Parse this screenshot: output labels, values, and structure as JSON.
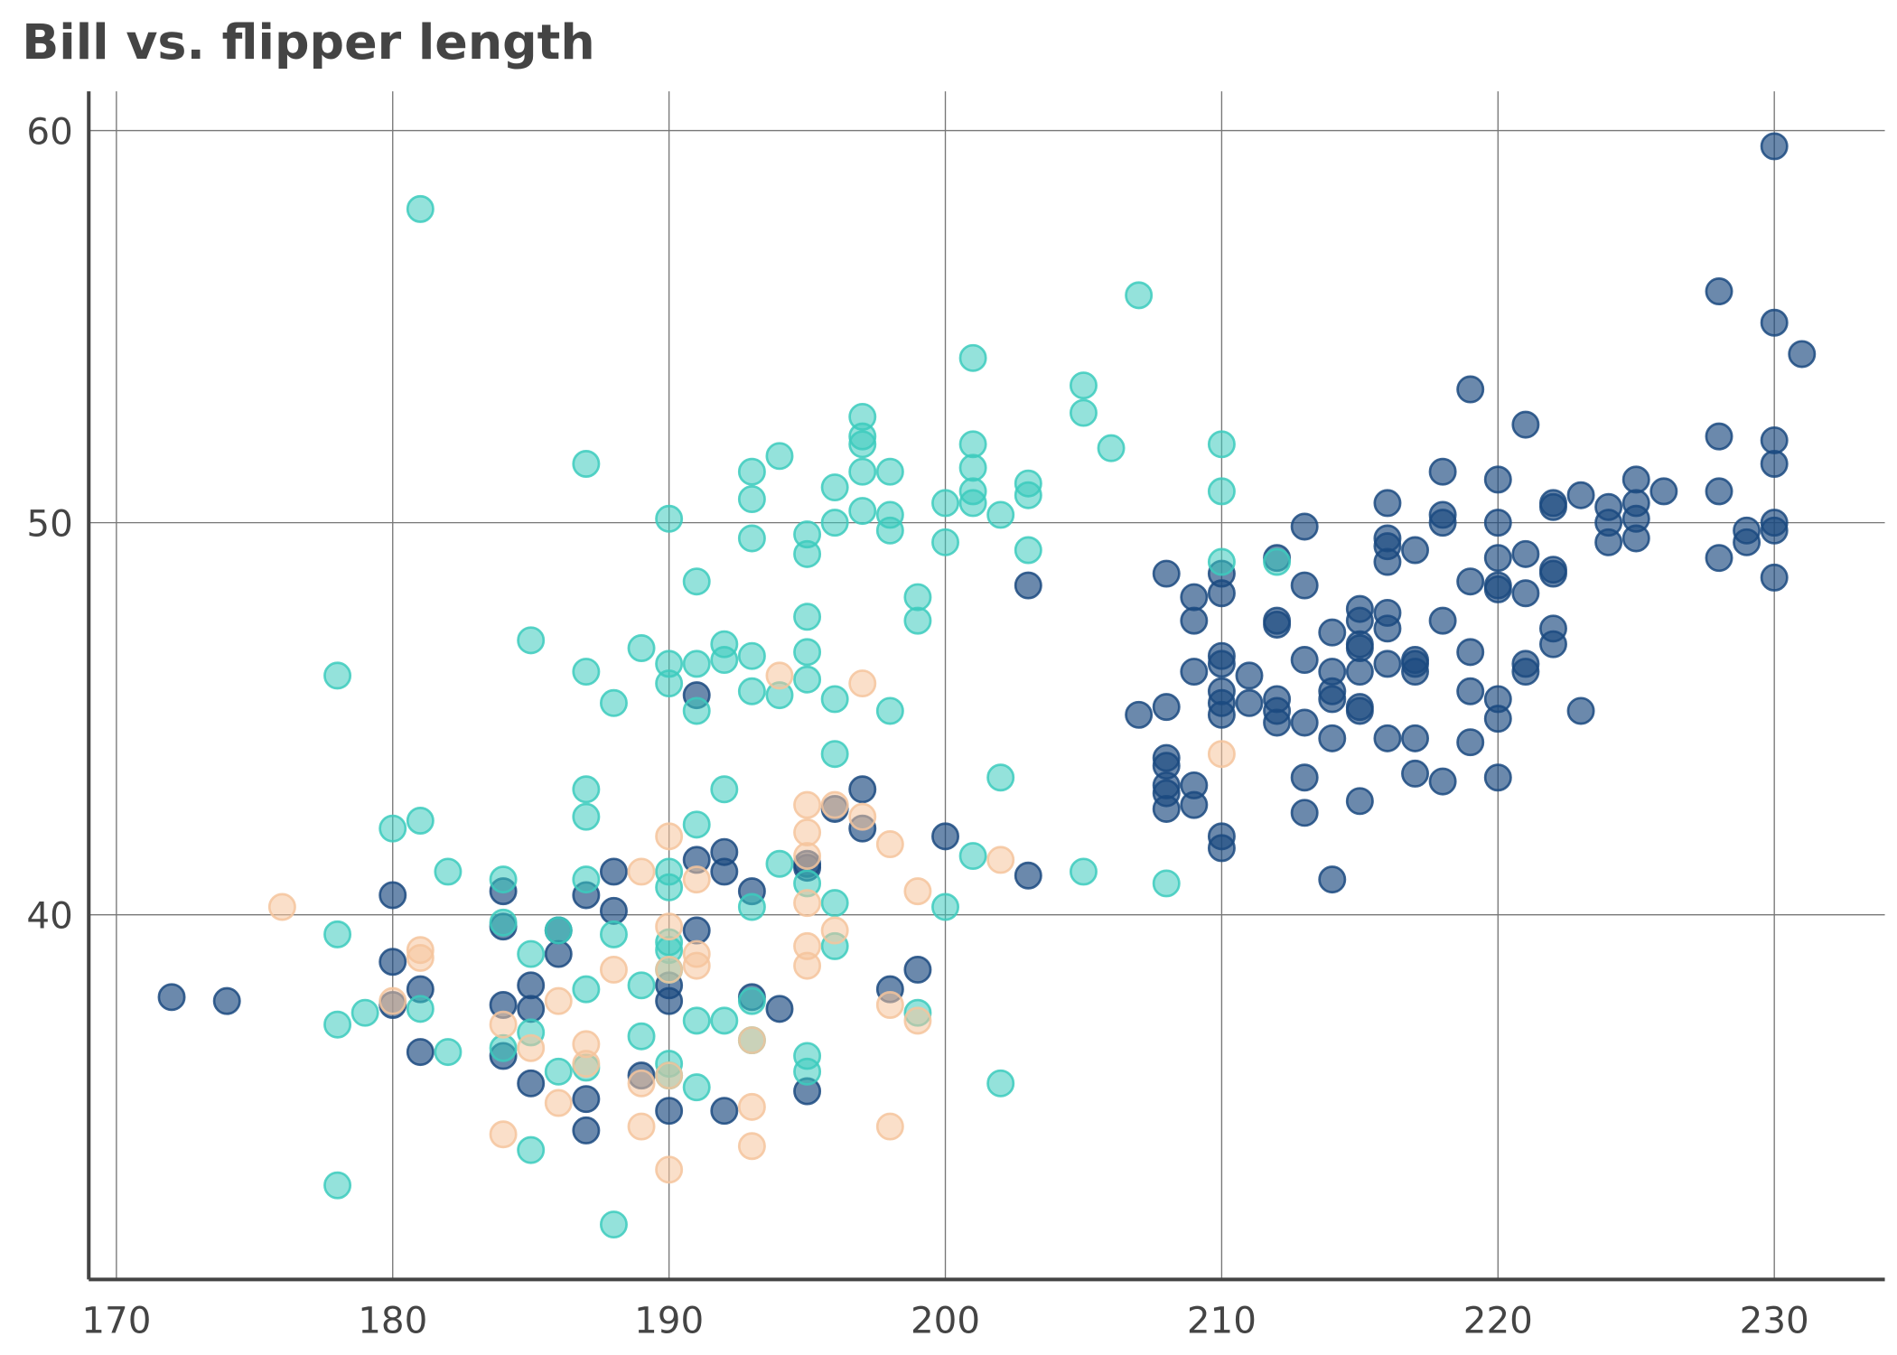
{
  "chart_data": {
    "type": "scatter",
    "title": "Bill vs. flipper length",
    "xlabel": "",
    "ylabel": "",
    "xlim": [
      169,
      234
    ],
    "ylim": [
      30.7,
      61
    ],
    "grid": true,
    "x_ticks": [
      170,
      180,
      190,
      200,
      210,
      220,
      230
    ],
    "y_ticks": [
      40,
      50,
      60
    ],
    "x_tick_labels": [
      "170",
      "180",
      "190",
      "200",
      "210",
      "220",
      "230"
    ],
    "y_tick_labels": [
      "40",
      "50",
      "60"
    ],
    "series": [
      {
        "color": "#1b4a80",
        "points": [
          [
            230,
            59.6
          ],
          [
            228,
            55.9
          ],
          [
            230,
            55.1
          ],
          [
            231,
            54.3
          ],
          [
            219,
            53.4
          ],
          [
            221,
            52.5
          ],
          [
            228,
            52.2
          ],
          [
            230,
            52.1
          ],
          [
            230,
            51.5
          ],
          [
            218,
            51.3
          ],
          [
            220,
            51.1
          ],
          [
            225,
            51.1
          ],
          [
            228,
            50.8
          ],
          [
            226,
            50.8
          ],
          [
            223,
            50.7
          ],
          [
            222,
            50.5
          ],
          [
            216,
            50.5
          ],
          [
            224,
            50.4
          ],
          [
            225,
            50.5
          ],
          [
            222,
            50.4
          ],
          [
            218,
            50.2
          ],
          [
            218,
            50.0
          ],
          [
            220,
            50.0
          ],
          [
            213,
            49.9
          ],
          [
            224,
            50.0
          ],
          [
            225,
            50.1
          ],
          [
            230,
            50.0
          ],
          [
            230,
            49.8
          ],
          [
            229,
            49.8
          ],
          [
            229,
            49.5
          ],
          [
            224,
            49.5
          ],
          [
            225,
            49.6
          ],
          [
            216,
            49.6
          ],
          [
            216,
            49.4
          ],
          [
            217,
            49.3
          ],
          [
            221,
            49.2
          ],
          [
            220,
            49.1
          ],
          [
            212,
            49.1
          ],
          [
            216,
            49.0
          ],
          [
            228,
            49.1
          ],
          [
            222,
            48.8
          ],
          [
            222,
            48.7
          ],
          [
            208,
            48.7
          ],
          [
            210,
            48.7
          ],
          [
            230,
            48.6
          ],
          [
            219,
            48.5
          ],
          [
            220,
            48.4
          ],
          [
            220,
            48.3
          ],
          [
            203,
            48.4
          ],
          [
            213,
            48.4
          ],
          [
            210,
            48.2
          ],
          [
            209,
            48.1
          ],
          [
            221,
            48.2
          ],
          [
            215,
            47.8
          ],
          [
            216,
            47.7
          ],
          [
            212,
            47.5
          ],
          [
            215,
            47.5
          ],
          [
            209,
            47.5
          ],
          [
            218,
            47.5
          ],
          [
            212,
            47.4
          ],
          [
            216,
            47.3
          ],
          [
            222,
            47.3
          ],
          [
            214,
            47.2
          ],
          [
            215,
            46.9
          ],
          [
            222,
            46.9
          ],
          [
            215,
            46.8
          ],
          [
            219,
            46.7
          ],
          [
            210,
            46.6
          ],
          [
            213,
            46.5
          ],
          [
            217,
            46.5
          ],
          [
            217,
            46.4
          ],
          [
            216,
            46.4
          ],
          [
            221,
            46.4
          ],
          [
            210,
            46.4
          ],
          [
            214,
            46.2
          ],
          [
            215,
            46.2
          ],
          [
            209,
            46.2
          ],
          [
            211,
            46.1
          ],
          [
            221,
            46.2
          ],
          [
            217,
            46.2
          ],
          [
            210,
            45.7
          ],
          [
            214,
            45.7
          ],
          [
            219,
            45.7
          ],
          [
            212,
            45.5
          ],
          [
            214,
            45.5
          ],
          [
            220,
            45.5
          ],
          [
            210,
            45.4
          ],
          [
            211,
            45.4
          ],
          [
            208,
            45.3
          ],
          [
            215,
            45.3
          ],
          [
            215,
            45.2
          ],
          [
            212,
            45.2
          ],
          [
            210,
            45.1
          ],
          [
            207,
            45.1
          ],
          [
            223,
            45.2
          ],
          [
            220,
            45.0
          ],
          [
            212,
            44.9
          ],
          [
            213,
            44.9
          ],
          [
            214,
            44.5
          ],
          [
            216,
            44.5
          ],
          [
            217,
            44.5
          ],
          [
            219,
            44.4
          ],
          [
            208,
            44.0
          ],
          [
            208,
            43.8
          ],
          [
            217,
            43.6
          ],
          [
            213,
            43.5
          ],
          [
            220,
            43.5
          ],
          [
            218,
            43.4
          ],
          [
            208,
            43.3
          ],
          [
            209,
            43.3
          ],
          [
            208,
            43.1
          ],
          [
            215,
            42.9
          ],
          [
            209,
            42.8
          ],
          [
            208,
            42.7
          ],
          [
            213,
            42.6
          ],
          [
            210,
            42.0
          ],
          [
            210,
            41.7
          ],
          [
            214,
            40.9
          ],
          [
            197,
            43.2
          ],
          [
            196,
            42.7
          ],
          [
            197,
            42.2
          ],
          [
            200,
            42.0
          ],
          [
            192,
            41.6
          ],
          [
            191,
            41.4
          ],
          [
            195,
            41.3
          ],
          [
            188,
            41.1
          ],
          [
            192,
            41.1
          ],
          [
            203,
            41.0
          ],
          [
            195,
            41.2
          ],
          [
            184,
            40.6
          ],
          [
            180,
            40.5
          ],
          [
            187,
            40.5
          ],
          [
            193,
            40.6
          ],
          [
            188,
            40.1
          ],
          [
            184,
            39.7
          ],
          [
            186,
            39.6
          ],
          [
            191,
            39.6
          ],
          [
            186,
            39.0
          ],
          [
            180,
            38.8
          ],
          [
            199,
            38.6
          ],
          [
            185,
            38.2
          ],
          [
            181,
            38.1
          ],
          [
            198,
            38.1
          ],
          [
            190,
            38.2
          ],
          [
            193,
            37.9
          ],
          [
            172,
            37.9
          ],
          [
            174,
            37.8
          ],
          [
            190,
            37.8
          ],
          [
            184,
            37.7
          ],
          [
            180,
            37.7
          ],
          [
            194,
            37.6
          ],
          [
            185,
            37.6
          ],
          [
            181,
            36.5
          ],
          [
            184,
            36.4
          ],
          [
            189,
            35.9
          ],
          [
            185,
            35.7
          ],
          [
            195,
            35.5
          ],
          [
            187,
            35.3
          ],
          [
            192,
            35.0
          ],
          [
            190,
            35.0
          ],
          [
            187,
            34.5
          ],
          [
            191,
            45.6
          ]
        ]
      },
      {
        "color": "#3ccbbd",
        "points": [
          [
            181,
            58.0
          ],
          [
            207,
            55.8
          ],
          [
            201,
            54.2
          ],
          [
            205,
            53.5
          ],
          [
            205,
            52.8
          ],
          [
            197,
            52.7
          ],
          [
            197,
            52.2
          ],
          [
            197,
            52.0
          ],
          [
            201,
            52.0
          ],
          [
            210,
            52.0
          ],
          [
            206,
            51.9
          ],
          [
            194,
            51.7
          ],
          [
            187,
            51.5
          ],
          [
            201,
            51.4
          ],
          [
            193,
            51.3
          ],
          [
            197,
            51.3
          ],
          [
            198,
            51.3
          ],
          [
            203,
            51.0
          ],
          [
            196,
            50.9
          ],
          [
            201,
            50.8
          ],
          [
            210,
            50.8
          ],
          [
            203,
            50.7
          ],
          [
            193,
            50.6
          ],
          [
            200,
            50.5
          ],
          [
            201,
            50.5
          ],
          [
            197,
            50.3
          ],
          [
            198,
            50.2
          ],
          [
            202,
            50.2
          ],
          [
            190,
            50.1
          ],
          [
            196,
            50.0
          ],
          [
            198,
            49.8
          ],
          [
            195,
            49.7
          ],
          [
            193,
            49.6
          ],
          [
            200,
            49.5
          ],
          [
            203,
            49.3
          ],
          [
            195,
            49.2
          ],
          [
            212,
            49.0
          ],
          [
            210,
            49.0
          ],
          [
            191,
            48.5
          ],
          [
            199,
            48.1
          ],
          [
            199,
            47.5
          ],
          [
            195,
            47.6
          ],
          [
            185,
            47.0
          ],
          [
            192,
            46.9
          ],
          [
            189,
            46.8
          ],
          [
            195,
            46.7
          ],
          [
            193,
            46.6
          ],
          [
            192,
            46.5
          ],
          [
            190,
            46.4
          ],
          [
            191,
            46.4
          ],
          [
            187,
            46.2
          ],
          [
            178,
            46.1
          ],
          [
            195,
            46.0
          ],
          [
            190,
            45.9
          ],
          [
            193,
            45.7
          ],
          [
            194,
            45.6
          ],
          [
            196,
            45.5
          ],
          [
            188,
            45.4
          ],
          [
            191,
            45.2
          ],
          [
            198,
            45.2
          ],
          [
            196,
            44.1
          ],
          [
            202,
            43.5
          ],
          [
            187,
            43.2
          ],
          [
            192,
            43.2
          ],
          [
            187,
            42.5
          ],
          [
            180,
            42.2
          ],
          [
            181,
            42.4
          ],
          [
            191,
            42.3
          ],
          [
            182,
            41.1
          ],
          [
            187,
            40.9
          ],
          [
            184,
            40.9
          ],
          [
            190,
            41.1
          ],
          [
            194,
            41.3
          ],
          [
            201,
            41.5
          ],
          [
            205,
            41.1
          ],
          [
            208,
            40.8
          ],
          [
            195,
            40.8
          ],
          [
            190,
            40.7
          ],
          [
            193,
            40.2
          ],
          [
            196,
            40.3
          ],
          [
            200,
            40.2
          ],
          [
            184,
            39.8
          ],
          [
            186,
            39.6
          ],
          [
            178,
            39.5
          ],
          [
            188,
            39.5
          ],
          [
            190,
            39.3
          ],
          [
            196,
            39.2
          ],
          [
            190,
            39.1
          ],
          [
            185,
            39.0
          ],
          [
            190,
            38.6
          ],
          [
            189,
            38.2
          ],
          [
            187,
            38.1
          ],
          [
            193,
            37.8
          ],
          [
            181,
            37.6
          ],
          [
            179,
            37.5
          ],
          [
            199,
            37.5
          ],
          [
            191,
            37.3
          ],
          [
            192,
            37.3
          ],
          [
            178,
            37.2
          ],
          [
            185,
            37.0
          ],
          [
            189,
            36.9
          ],
          [
            193,
            36.8
          ],
          [
            182,
            36.5
          ],
          [
            184,
            36.6
          ],
          [
            195,
            36.4
          ],
          [
            190,
            36.2
          ],
          [
            187,
            36.1
          ],
          [
            186,
            36.0
          ],
          [
            195,
            36.0
          ],
          [
            190,
            35.9
          ],
          [
            191,
            35.6
          ],
          [
            202,
            35.7
          ],
          [
            185,
            34.0
          ],
          [
            178,
            33.1
          ],
          [
            188,
            32.1
          ]
        ]
      },
      {
        "color": "#f5c49c",
        "points": [
          [
            194,
            46.1
          ],
          [
            197,
            45.9
          ],
          [
            210,
            44.1
          ],
          [
            195,
            42.8
          ],
          [
            196,
            42.8
          ],
          [
            197,
            42.5
          ],
          [
            195,
            42.1
          ],
          [
            190,
            42.0
          ],
          [
            198,
            41.8
          ],
          [
            195,
            41.5
          ],
          [
            189,
            41.1
          ],
          [
            202,
            41.4
          ],
          [
            191,
            40.9
          ],
          [
            199,
            40.6
          ],
          [
            195,
            40.3
          ],
          [
            176,
            40.2
          ],
          [
            190,
            39.7
          ],
          [
            196,
            39.6
          ],
          [
            195,
            39.2
          ],
          [
            181,
            39.1
          ],
          [
            191,
            39.0
          ],
          [
            181,
            38.9
          ],
          [
            191,
            38.7
          ],
          [
            190,
            38.6
          ],
          [
            195,
            38.7
          ],
          [
            188,
            38.6
          ],
          [
            180,
            37.8
          ],
          [
            186,
            37.8
          ],
          [
            198,
            37.7
          ],
          [
            184,
            37.2
          ],
          [
            199,
            37.3
          ],
          [
            193,
            36.8
          ],
          [
            187,
            36.7
          ],
          [
            185,
            36.6
          ],
          [
            187,
            36.2
          ],
          [
            189,
            35.7
          ],
          [
            190,
            35.9
          ],
          [
            186,
            35.2
          ],
          [
            193,
            35.1
          ],
          [
            189,
            34.6
          ],
          [
            184,
            34.4
          ],
          [
            198,
            34.6
          ],
          [
            193,
            34.1
          ],
          [
            190,
            33.5
          ]
        ]
      }
    ]
  }
}
